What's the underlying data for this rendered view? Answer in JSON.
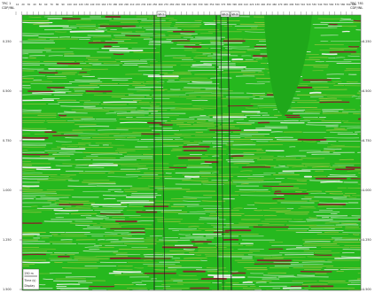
{
  "header": {
    "left_label_1": "TRC 1",
    "left_label_2": "CDP/INL",
    "right_label_1": "TRC 781",
    "right_label_2": "CDP/INL",
    "well_1": "W-1",
    "well_2": "W-2",
    "well_3": "W-3"
  },
  "top_ticks": [
    "10",
    "20",
    "30",
    "40",
    "50",
    "60",
    "70",
    "80",
    "90",
    "100",
    "110",
    "120",
    "130",
    "140",
    "150",
    "160",
    "170",
    "180",
    "190",
    "200",
    "210",
    "220",
    "230",
    "240",
    "250",
    "260",
    "270",
    "280",
    "290",
    "300",
    "310",
    "320",
    "330",
    "340",
    "350",
    "360",
    "370",
    "380",
    "390",
    "400",
    "410",
    "420",
    "430",
    "440",
    "450",
    "460",
    "470",
    "480",
    "490",
    "500",
    "510",
    "520",
    "530",
    "540",
    "550",
    "560",
    "570",
    "580",
    "590",
    "600"
  ],
  "time_ticks": [
    "0.250",
    "0.500",
    "0.750",
    "1.000",
    "1.250",
    "1.500"
  ],
  "footer": {
    "scale": "250 m",
    "unit": "Time (s)",
    "note": "Display"
  },
  "colors": {
    "background": "#26b81e",
    "peak": "#8a1f2a",
    "trough": "#f2f2f2",
    "shadow": "#b4c84a",
    "well_line": "#1c1c1c"
  }
}
